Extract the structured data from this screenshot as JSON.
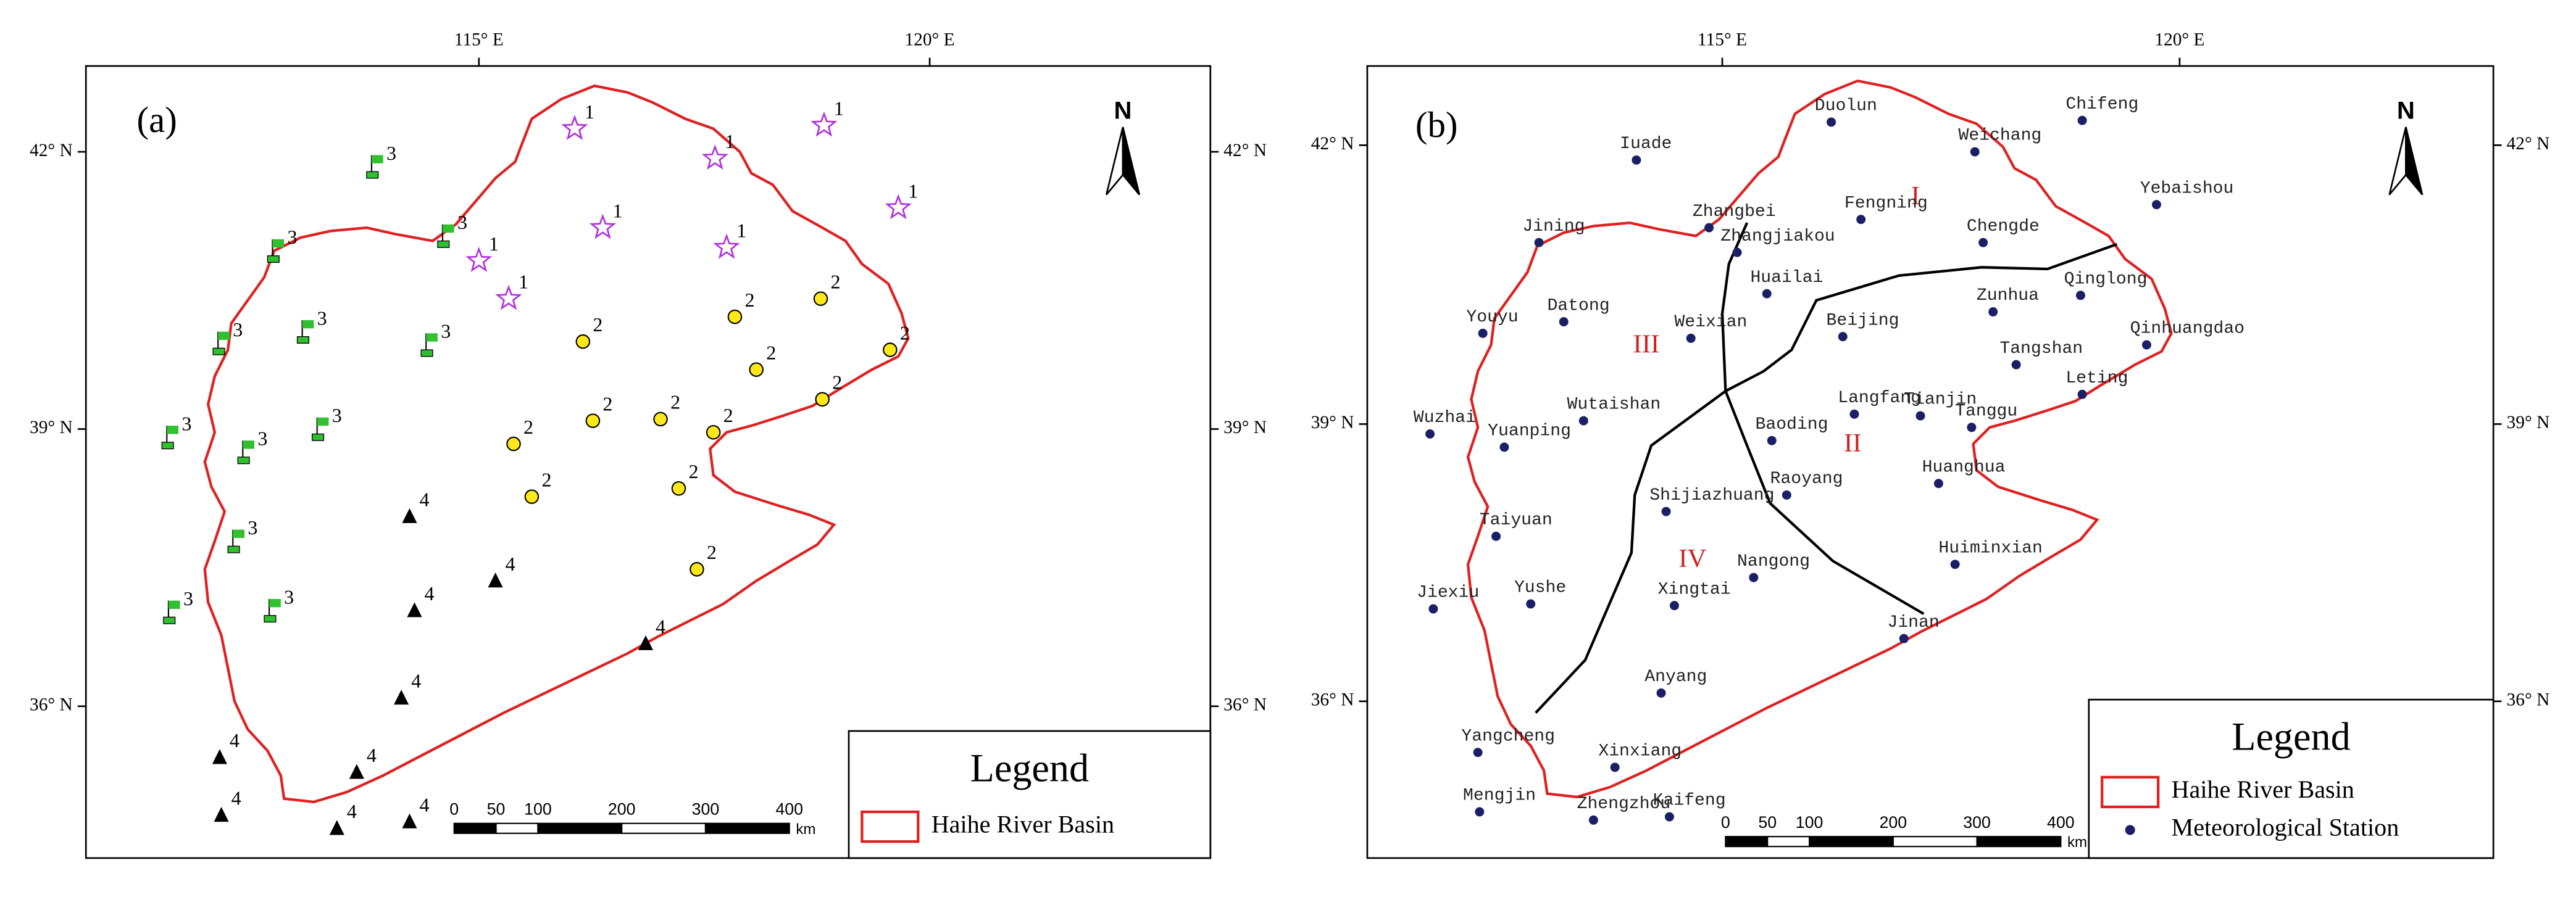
{
  "panels": [
    {
      "label": "(a)",
      "x_ticks": [
        "115° E",
        "120° E"
      ],
      "y_ticks": [
        "42° N",
        "39° N",
        "36° N"
      ],
      "north": "N",
      "sites": [
        "1",
        "1",
        "1",
        "1",
        "1",
        "1",
        "1",
        "1",
        "2",
        "2",
        "2",
        "2",
        "2",
        "2",
        "2",
        "2",
        "2",
        "2",
        "2",
        "2",
        "2",
        "3",
        "3",
        "3",
        "3",
        "3",
        "3",
        "3",
        "3",
        "3",
        "3",
        "3",
        "3",
        "4",
        "4",
        "4",
        "4",
        "4",
        "4",
        "4",
        "4",
        "4",
        "4"
      ],
      "legend": {
        "title": "Legend",
        "items": [
          "Haihe River Basin"
        ]
      },
      "scale": {
        "ticks": [
          0,
          50,
          100,
          200,
          300,
          400
        ],
        "unit": "km"
      }
    },
    {
      "label": "(b)",
      "x_ticks": [
        "115° E",
        "120° E"
      ],
      "y_ticks": [
        "42° N",
        "39° N",
        "36° N"
      ],
      "north": "N",
      "regions": [
        "I",
        "II",
        "III",
        "IV"
      ],
      "stations": [
        "Duolun",
        "Weichang",
        "Chifeng",
        "Iuade",
        "Yebaishou",
        "Zhangbei",
        "Fengning",
        "Chengde",
        "Jining",
        "Zhangjiakou",
        "Huailai",
        "Qinglong",
        "Zunhua",
        "Youyu",
        "Datong",
        "Weixian",
        "Beijing",
        "Qinhuangdao",
        "Tangshan",
        "Leting",
        "Wutaishan",
        "Langfang",
        "Tianjin",
        "Tanggu",
        "Baoding",
        "Wuzhai",
        "Yuanping",
        "Huanghua",
        "Shijiazhuang",
        "Raoyang",
        "Taiyuan",
        "Huiminxian",
        "Nangong",
        "Xingtai",
        "Jiexiu",
        "Yushe",
        "Jinan",
        "Anyang",
        "Yangcheng",
        "Xinxiang",
        "Mengjin",
        "Zhengzhou",
        "Kaifeng"
      ],
      "legend": {
        "title": "Legend",
        "items": [
          "Haihe River Basin",
          "Meteorological Station"
        ]
      },
      "scale": {
        "ticks": [
          0,
          50,
          100,
          200,
          300,
          400
        ],
        "unit": "km"
      }
    }
  ]
}
